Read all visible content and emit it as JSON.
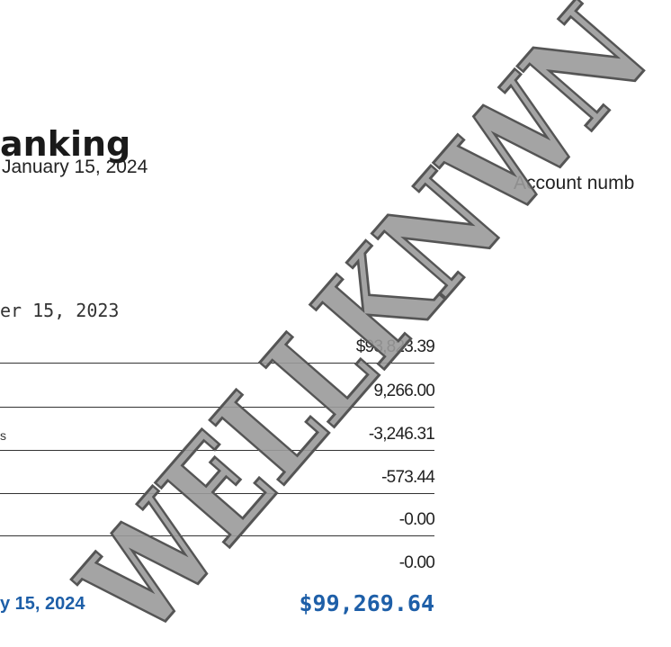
{
  "header": {
    "title": "anking",
    "date": "January 15, 2024",
    "account_label": "Account numb"
  },
  "summary": {
    "period_start": "er 15, 2023",
    "rows": [
      {
        "amount": "$93,823.39"
      },
      {
        "amount": "9,266.00"
      },
      {
        "label": "s",
        "amount": "-3,246.31"
      },
      {
        "amount": "-573.44"
      },
      {
        "amount": "-0.00"
      },
      {
        "amount": "-0.00"
      }
    ],
    "ending_label": "y 15, 2024",
    "ending_amount": "$99,269.64"
  },
  "watermark": "WELLKNWN"
}
